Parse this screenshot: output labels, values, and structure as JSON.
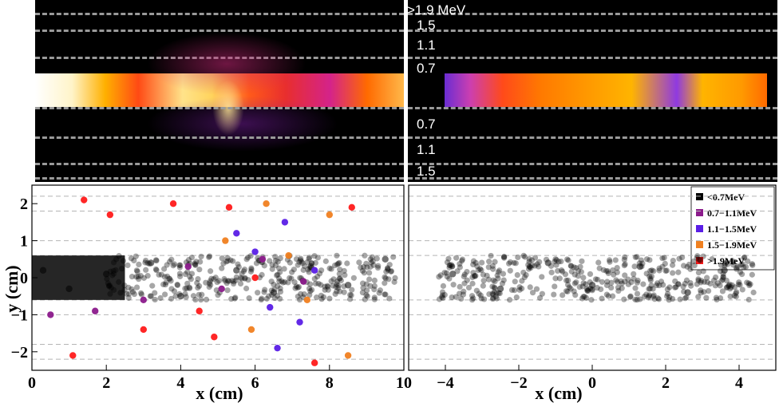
{
  "energy_scale": {
    "labels": [
      ">1.9 MeV",
      "1.5",
      "1.1",
      "0.7",
      "0.7",
      "1.1",
      "1.5"
    ]
  },
  "chart_data": [
    {
      "type": "scatter",
      "name": "left-scatter",
      "xlabel": "x (cm)",
      "ylabel": "y (cm)",
      "xlim": [
        0,
        10
      ],
      "ylim": [
        -2.5,
        2.5
      ],
      "xticks": [
        0,
        2,
        4,
        6,
        8,
        10
      ],
      "xtick_labels": [
        "0",
        "2",
        "4",
        "6",
        "8",
        "10"
      ],
      "yticks": [
        -2,
        -1,
        0,
        1,
        2
      ],
      "ytick_labels": [
        "−2",
        "−1",
        "0",
        "1",
        "2"
      ],
      "gridlines_y": [
        -2.2,
        -1.8,
        -1.0,
        -0.6,
        0.6,
        1.0,
        1.8,
        2.2
      ],
      "series": [
        {
          "name": "<0.7MeV",
          "color": "#000000",
          "points": [
            [
              0.3,
              0.2
            ],
            [
              1.0,
              -0.3
            ],
            [
              2.0,
              0.1
            ],
            [
              3.2,
              0.4
            ],
            [
              4.0,
              -0.5
            ],
            [
              5.5,
              0.2
            ],
            [
              6.5,
              -0.4
            ],
            [
              7.5,
              0.3
            ],
            [
              8.5,
              -0.2
            ],
            [
              9.5,
              0.5
            ]
          ]
        },
        {
          "name": "0.7−1.1MeV",
          "color": "#8b1a8b",
          "points": [
            [
              0.5,
              -1.0
            ],
            [
              1.7,
              -0.9
            ],
            [
              3.0,
              -0.6
            ],
            [
              4.2,
              0.3
            ],
            [
              5.1,
              -0.3
            ],
            [
              6.2,
              0.5
            ],
            [
              7.3,
              -0.1
            ]
          ]
        },
        {
          "name": "1.1−1.5MeV",
          "color": "#5a1ee6",
          "points": [
            [
              5.5,
              1.2
            ],
            [
              6.0,
              0.7
            ],
            [
              6.4,
              -0.8
            ],
            [
              6.8,
              1.5
            ],
            [
              7.2,
              -1.2
            ],
            [
              7.6,
              0.2
            ],
            [
              6.6,
              -1.9
            ]
          ]
        },
        {
          "name": "1.5−1.9MeV",
          "color": "#f08020",
          "points": [
            [
              5.2,
              1.0
            ],
            [
              5.9,
              -1.4
            ],
            [
              6.3,
              2.0
            ],
            [
              6.9,
              0.6
            ],
            [
              7.4,
              -0.6
            ],
            [
              8.0,
              1.7
            ],
            [
              8.5,
              -2.1
            ]
          ]
        },
        {
          "name": ">1.9MeV",
          "color": "#ff1a1a",
          "points": [
            [
              1.1,
              -2.1
            ],
            [
              1.4,
              2.1
            ],
            [
              2.1,
              1.7
            ],
            [
              3.0,
              -1.4
            ],
            [
              3.8,
              2.0
            ],
            [
              4.5,
              -0.9
            ],
            [
              4.9,
              -1.6
            ],
            [
              5.3,
              1.9
            ],
            [
              6.0,
              0.0
            ],
            [
              7.6,
              -2.3
            ],
            [
              8.6,
              1.9
            ]
          ]
        }
      ],
      "legend": {
        "position": "top-right",
        "entries": [
          "<0.7MeV",
          "0.7−1.1MeV",
          "1.1−1.5MeV",
          "1.5−1.9MeV",
          ">1.9MeV"
        ],
        "colors": [
          "#000000",
          "#8b1a8b",
          "#5a1ee6",
          "#f08020",
          "#ff1a1a"
        ]
      }
    },
    {
      "type": "scatter",
      "name": "right-scatter",
      "xlabel": "x (cm)",
      "ylabel": "",
      "xlim": [
        -5,
        5
      ],
      "ylim": [
        -2.5,
        2.5
      ],
      "xticks": [
        -4,
        -2,
        0,
        2,
        4
      ],
      "xtick_labels": [
        "−4",
        "−2",
        "0",
        "2",
        "4"
      ],
      "gridlines_y": [
        -2.2,
        -1.8,
        -1.0,
        -0.6,
        0.6,
        1.0,
        1.8,
        2.2
      ],
      "series": [
        {
          "name": "<0.7MeV",
          "color": "#000000",
          "points": [
            [
              -3.8,
              0.1
            ],
            [
              -2.5,
              -0.3
            ],
            [
              -1.2,
              0.4
            ],
            [
              0.0,
              -0.2
            ],
            [
              1.3,
              0.3
            ],
            [
              2.6,
              -0.4
            ],
            [
              3.6,
              0.2
            ]
          ]
        }
      ]
    }
  ]
}
